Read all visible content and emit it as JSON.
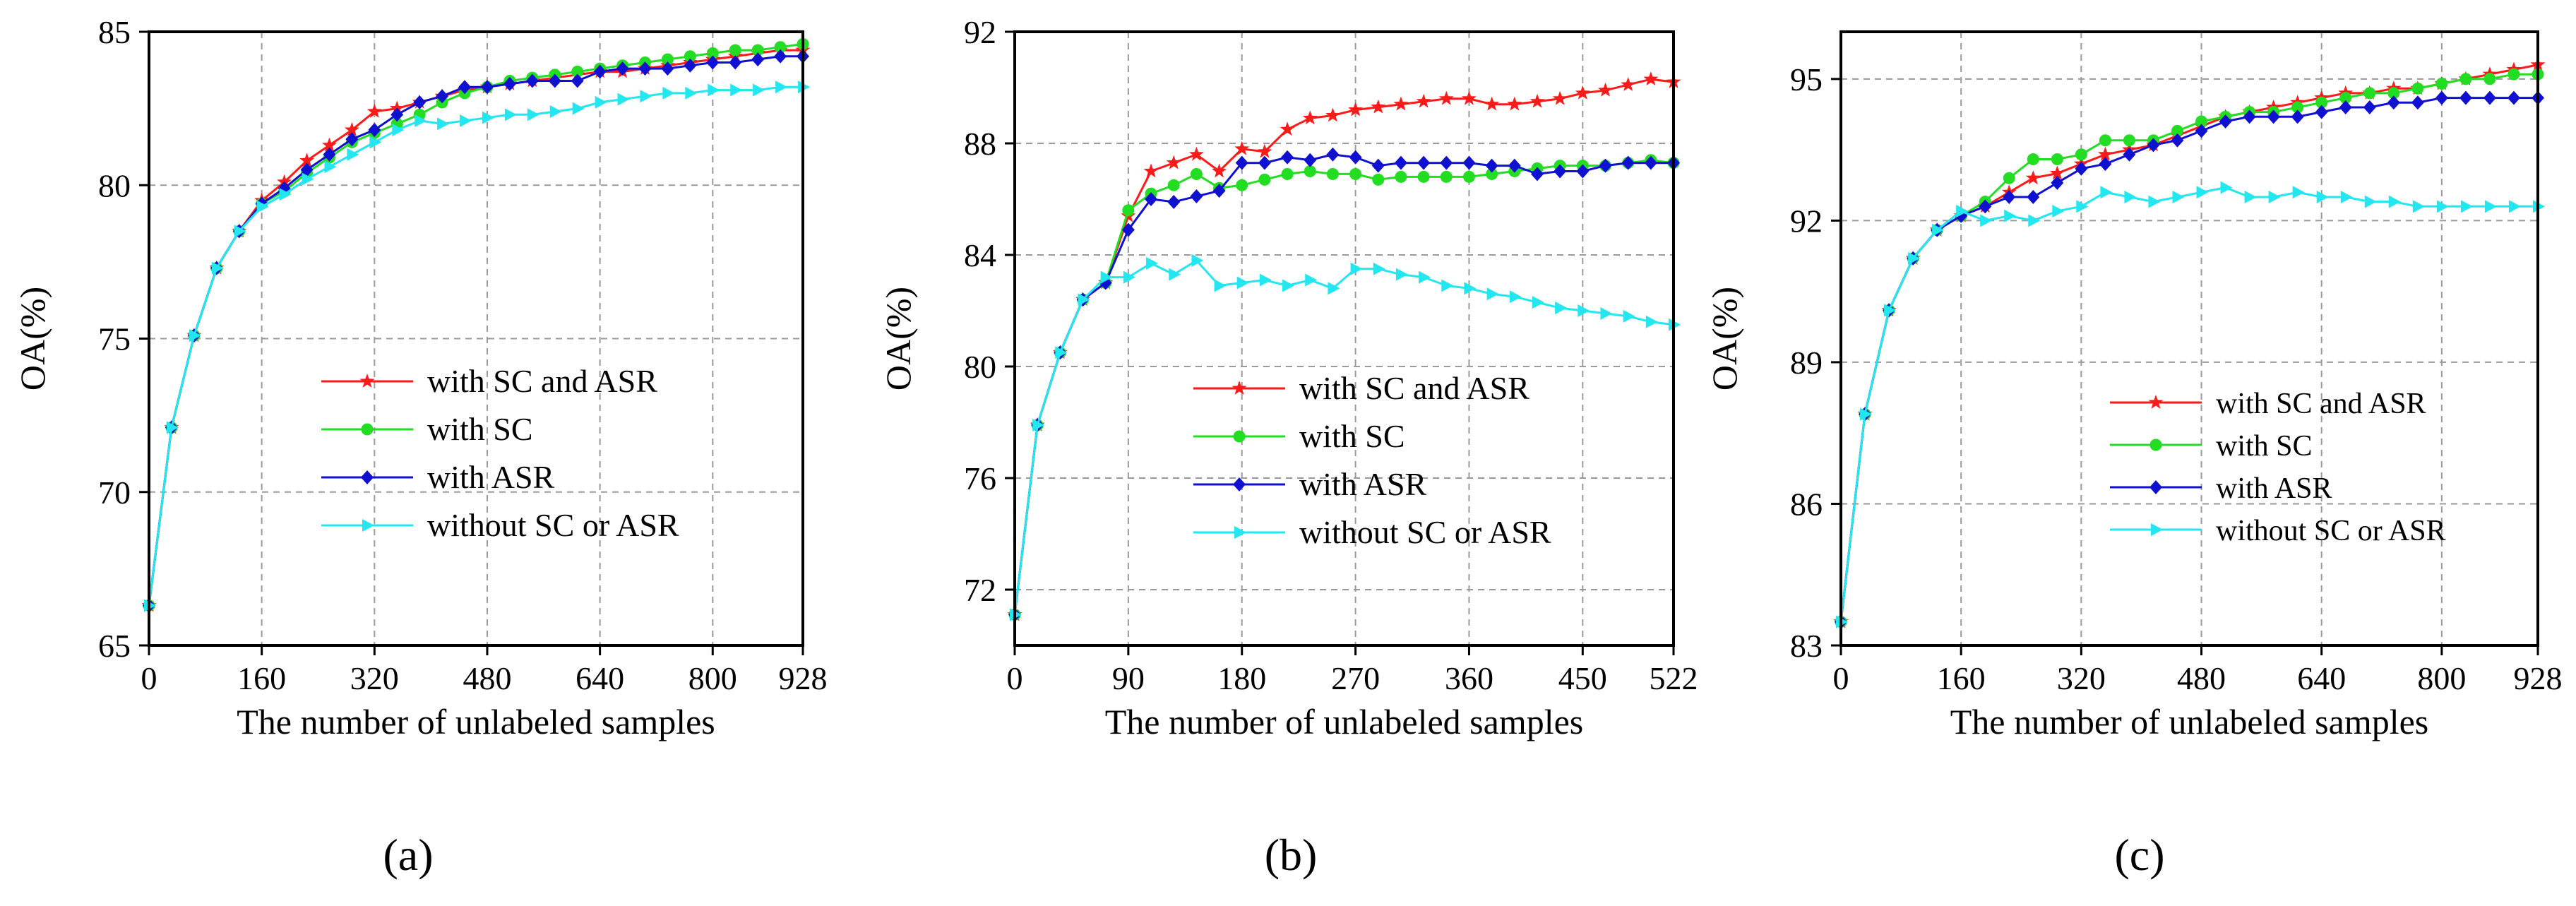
{
  "figure": {
    "panels": [
      "(a)",
      "(b)",
      "(c)"
    ]
  },
  "series_colors": {
    "with SC and ASR": "#ff1a1a",
    "with SC": "#22dd22",
    "with ASR": "#1010d0",
    "without SC or ASR": "#22e6f0"
  },
  "series_markers": {
    "with SC and ASR": "star",
    "with SC": "circle",
    "with ASR": "diamond",
    "without SC or ASR": "triangle-right"
  },
  "chart_data": [
    {
      "type": "line",
      "panel_label": "(a)",
      "xlabel": "The number of unlabeled samples",
      "ylabel": "OA(%)",
      "xlim": [
        0,
        928
      ],
      "ylim": [
        65,
        85
      ],
      "xticks": [
        0,
        160,
        320,
        480,
        640,
        800,
        928
      ],
      "yticks": [
        65,
        70,
        75,
        80,
        85
      ],
      "grid": true,
      "legend_position": "lower-right",
      "series": [
        {
          "name": "with SC and ASR",
          "x": [
            0,
            32,
            64,
            96,
            128,
            160,
            192,
            224,
            256,
            288,
            320,
            352,
            384,
            416,
            448,
            480,
            512,
            544,
            576,
            608,
            640,
            672,
            704,
            736,
            768,
            800,
            832,
            864,
            896,
            928
          ],
          "values": [
            66.3,
            72.1,
            75.1,
            77.3,
            78.5,
            79.5,
            80.1,
            80.8,
            81.3,
            81.8,
            82.4,
            82.5,
            82.7,
            82.9,
            83.1,
            83.2,
            83.3,
            83.4,
            83.5,
            83.6,
            83.7,
            83.7,
            83.8,
            83.9,
            84.0,
            84.1,
            84.2,
            84.3,
            84.4,
            84.4
          ]
        },
        {
          "name": "with SC",
          "x": [
            0,
            32,
            64,
            96,
            128,
            160,
            192,
            224,
            256,
            288,
            320,
            352,
            384,
            416,
            448,
            480,
            512,
            544,
            576,
            608,
            640,
            672,
            704,
            736,
            768,
            800,
            832,
            864,
            896,
            928
          ],
          "values": [
            66.3,
            72.1,
            75.1,
            77.3,
            78.5,
            79.4,
            79.8,
            80.4,
            80.9,
            81.4,
            81.7,
            82.0,
            82.3,
            82.7,
            83.0,
            83.2,
            83.4,
            83.5,
            83.6,
            83.7,
            83.8,
            83.9,
            84.0,
            84.1,
            84.2,
            84.3,
            84.4,
            84.4,
            84.5,
            84.6
          ]
        },
        {
          "name": "with ASR",
          "x": [
            0,
            32,
            64,
            96,
            128,
            160,
            192,
            224,
            256,
            288,
            320,
            352,
            384,
            416,
            448,
            480,
            512,
            544,
            576,
            608,
            640,
            672,
            704,
            736,
            768,
            800,
            832,
            864,
            896,
            928
          ],
          "values": [
            66.3,
            72.1,
            75.1,
            77.3,
            78.5,
            79.4,
            79.9,
            80.5,
            81.0,
            81.5,
            81.8,
            82.3,
            82.7,
            82.9,
            83.2,
            83.2,
            83.3,
            83.4,
            83.4,
            83.4,
            83.7,
            83.8,
            83.8,
            83.8,
            83.9,
            84.0,
            84.0,
            84.1,
            84.2,
            84.2
          ]
        },
        {
          "name": "without SC or ASR",
          "x": [
            0,
            32,
            64,
            96,
            128,
            160,
            192,
            224,
            256,
            288,
            320,
            352,
            384,
            416,
            448,
            480,
            512,
            544,
            576,
            608,
            640,
            672,
            704,
            736,
            768,
            800,
            832,
            864,
            896,
            928
          ],
          "values": [
            66.3,
            72.1,
            75.1,
            77.3,
            78.5,
            79.3,
            79.7,
            80.2,
            80.6,
            81.0,
            81.4,
            81.8,
            82.1,
            82.0,
            82.1,
            82.2,
            82.3,
            82.3,
            82.4,
            82.5,
            82.7,
            82.8,
            82.9,
            83.0,
            83.0,
            83.1,
            83.1,
            83.1,
            83.2,
            83.2
          ]
        }
      ],
      "legend": [
        "with SC and ASR",
        "with SC",
        "with ASR",
        "without SC or ASR"
      ]
    },
    {
      "type": "line",
      "panel_label": "(b)",
      "xlabel": "The number of unlabeled samples",
      "ylabel": "OA(%)",
      "xlim": [
        0,
        522
      ],
      "ylim": [
        70,
        92
      ],
      "xticks": [
        0,
        90,
        180,
        270,
        360,
        450,
        522
      ],
      "yticks": [
        72,
        76,
        80,
        84,
        88,
        92
      ],
      "grid": true,
      "legend_position": "lower-right",
      "series": [
        {
          "name": "with SC and ASR",
          "x": [
            0,
            18,
            36,
            54,
            72,
            90,
            108,
            126,
            144,
            162,
            180,
            198,
            216,
            234,
            252,
            270,
            288,
            306,
            324,
            342,
            360,
            378,
            396,
            414,
            432,
            450,
            468,
            486,
            504,
            522
          ],
          "values": [
            71.1,
            77.9,
            80.5,
            82.4,
            83.0,
            85.4,
            87.0,
            87.3,
            87.6,
            87.0,
            87.8,
            87.7,
            88.5,
            88.9,
            89.0,
            89.2,
            89.3,
            89.4,
            89.5,
            89.6,
            89.6,
            89.4,
            89.4,
            89.5,
            89.6,
            89.8,
            89.9,
            90.1,
            90.3,
            90.2
          ]
        },
        {
          "name": "with SC",
          "x": [
            0,
            18,
            36,
            54,
            72,
            90,
            108,
            126,
            144,
            162,
            180,
            198,
            216,
            234,
            252,
            270,
            288,
            306,
            324,
            342,
            360,
            378,
            396,
            414,
            432,
            450,
            468,
            486,
            504,
            522
          ],
          "values": [
            71.1,
            77.9,
            80.5,
            82.4,
            83.0,
            85.6,
            86.2,
            86.5,
            86.9,
            86.4,
            86.5,
            86.7,
            86.9,
            87.0,
            86.9,
            86.9,
            86.7,
            86.8,
            86.8,
            86.8,
            86.8,
            86.9,
            87.0,
            87.1,
            87.2,
            87.2,
            87.2,
            87.3,
            87.4,
            87.3
          ]
        },
        {
          "name": "with ASR",
          "x": [
            0,
            18,
            36,
            54,
            72,
            90,
            108,
            126,
            144,
            162,
            180,
            198,
            216,
            234,
            252,
            270,
            288,
            306,
            324,
            342,
            360,
            378,
            396,
            414,
            432,
            450,
            468,
            486,
            504,
            522
          ],
          "values": [
            71.1,
            77.9,
            80.5,
            82.4,
            83.0,
            84.9,
            86.0,
            85.9,
            86.1,
            86.3,
            87.3,
            87.3,
            87.5,
            87.4,
            87.6,
            87.5,
            87.2,
            87.3,
            87.3,
            87.3,
            87.3,
            87.2,
            87.2,
            86.9,
            87.0,
            87.0,
            87.2,
            87.3,
            87.3,
            87.3
          ]
        },
        {
          "name": "without SC or ASR",
          "x": [
            0,
            18,
            36,
            54,
            72,
            90,
            108,
            126,
            144,
            162,
            180,
            198,
            216,
            234,
            252,
            270,
            288,
            306,
            324,
            342,
            360,
            378,
            396,
            414,
            432,
            450,
            468,
            486,
            504,
            522
          ],
          "values": [
            71.1,
            77.9,
            80.5,
            82.4,
            83.2,
            83.2,
            83.7,
            83.3,
            83.8,
            82.9,
            83.0,
            83.1,
            82.9,
            83.1,
            82.8,
            83.5,
            83.5,
            83.3,
            83.2,
            82.9,
            82.8,
            82.6,
            82.5,
            82.3,
            82.1,
            82.0,
            81.9,
            81.8,
            81.6,
            81.5
          ]
        }
      ],
      "legend": [
        "with SC and ASR",
        "with SC",
        "with ASR",
        "without SC or ASR"
      ]
    },
    {
      "type": "line",
      "panel_label": "(c)",
      "xlabel": "The number of unlabeled samples",
      "ylabel": "OA(%)",
      "xlim": [
        0,
        928
      ],
      "ylim": [
        83,
        96
      ],
      "xticks": [
        0,
        160,
        320,
        480,
        640,
        800,
        928
      ],
      "yticks": [
        83,
        86,
        89,
        92,
        95
      ],
      "grid": true,
      "legend_position": "lower-right",
      "series": [
        {
          "name": "with SC and ASR",
          "x": [
            0,
            32,
            64,
            96,
            128,
            160,
            192,
            224,
            256,
            288,
            320,
            352,
            384,
            416,
            448,
            480,
            512,
            544,
            576,
            608,
            640,
            672,
            704,
            736,
            768,
            800,
            832,
            864,
            896,
            928
          ],
          "values": [
            83.5,
            87.9,
            90.1,
            91.2,
            91.8,
            92.1,
            92.3,
            92.6,
            92.9,
            93.0,
            93.2,
            93.4,
            93.5,
            93.6,
            93.8,
            94.0,
            94.2,
            94.3,
            94.4,
            94.5,
            94.6,
            94.7,
            94.7,
            94.8,
            94.8,
            94.9,
            95.0,
            95.1,
            95.2,
            95.3
          ]
        },
        {
          "name": "with SC",
          "x": [
            0,
            32,
            64,
            96,
            128,
            160,
            192,
            224,
            256,
            288,
            320,
            352,
            384,
            416,
            448,
            480,
            512,
            544,
            576,
            608,
            640,
            672,
            704,
            736,
            768,
            800,
            832,
            864,
            896,
            928
          ],
          "values": [
            83.5,
            87.9,
            90.1,
            91.2,
            91.8,
            92.1,
            92.4,
            92.9,
            93.3,
            93.3,
            93.4,
            93.7,
            93.7,
            93.7,
            93.9,
            94.1,
            94.2,
            94.3,
            94.3,
            94.4,
            94.5,
            94.6,
            94.7,
            94.7,
            94.8,
            94.9,
            95.0,
            95.0,
            95.1,
            95.1
          ]
        },
        {
          "name": "with ASR",
          "x": [
            0,
            32,
            64,
            96,
            128,
            160,
            192,
            224,
            256,
            288,
            320,
            352,
            384,
            416,
            448,
            480,
            512,
            544,
            576,
            608,
            640,
            672,
            704,
            736,
            768,
            800,
            832,
            864,
            896,
            928
          ],
          "values": [
            83.5,
            87.9,
            90.1,
            91.2,
            91.8,
            92.1,
            92.3,
            92.5,
            92.5,
            92.8,
            93.1,
            93.2,
            93.4,
            93.6,
            93.7,
            93.9,
            94.1,
            94.2,
            94.2,
            94.2,
            94.3,
            94.4,
            94.4,
            94.5,
            94.5,
            94.6,
            94.6,
            94.6,
            94.6,
            94.6
          ]
        },
        {
          "name": "without SC or ASR",
          "x": [
            0,
            32,
            64,
            96,
            128,
            160,
            192,
            224,
            256,
            288,
            320,
            352,
            384,
            416,
            448,
            480,
            512,
            544,
            576,
            608,
            640,
            672,
            704,
            736,
            768,
            800,
            832,
            864,
            896,
            928
          ],
          "values": [
            83.5,
            87.9,
            90.1,
            91.2,
            91.8,
            92.2,
            92.0,
            92.1,
            92.0,
            92.2,
            92.3,
            92.6,
            92.5,
            92.4,
            92.5,
            92.6,
            92.7,
            92.5,
            92.5,
            92.6,
            92.5,
            92.5,
            92.4,
            92.4,
            92.3,
            92.3,
            92.3,
            92.3,
            92.3,
            92.3
          ]
        }
      ],
      "legend": [
        "with SC and ASR",
        "with SC",
        "with ASR",
        "without SC or ASR"
      ]
    }
  ]
}
